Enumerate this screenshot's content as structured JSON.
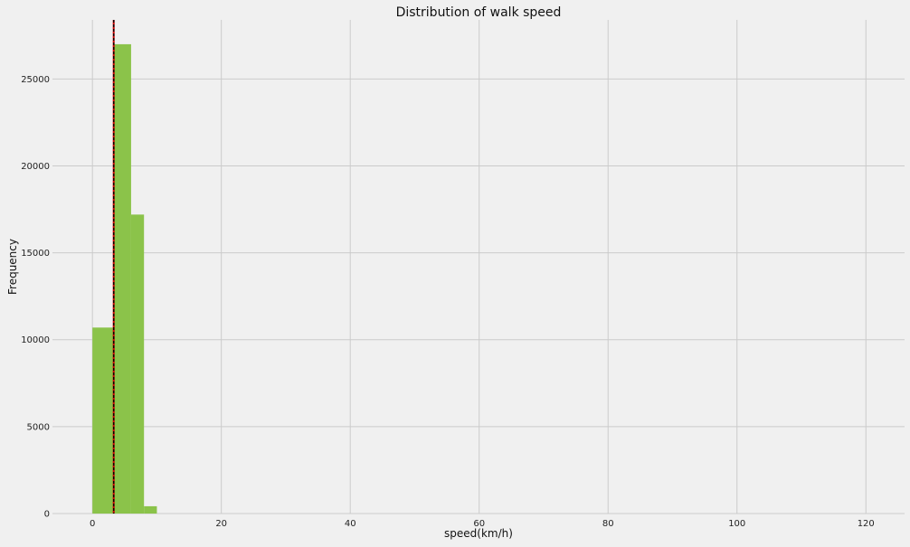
{
  "chart_data": {
    "type": "bar",
    "title": "Distribution of walk speed",
    "xlabel": "speed(km/h)",
    "ylabel": "Frequency",
    "xlim": [
      -6.2,
      126
    ],
    "ylim": [
      0,
      28400
    ],
    "xticks": [
      0,
      20,
      40,
      60,
      80,
      100,
      120
    ],
    "yticks": [
      0,
      5000,
      10000,
      15000,
      20000,
      25000
    ],
    "grid": true,
    "bar_color": "#8bc34a",
    "bins": [
      {
        "x0": 0.0,
        "x1": 3.4,
        "value": 10700
      },
      {
        "x0": 3.4,
        "x1": 6.0,
        "value": 27000
      },
      {
        "x0": 6.0,
        "x1": 8.0,
        "value": 17200
      },
      {
        "x0": 8.0,
        "x1": 10.0,
        "value": 420
      }
    ],
    "reference_lines": [
      {
        "x": 3.3,
        "color": "#cc0000",
        "style": "solid"
      },
      {
        "x": 3.3,
        "color": "#000000",
        "style": "dashed"
      }
    ]
  }
}
